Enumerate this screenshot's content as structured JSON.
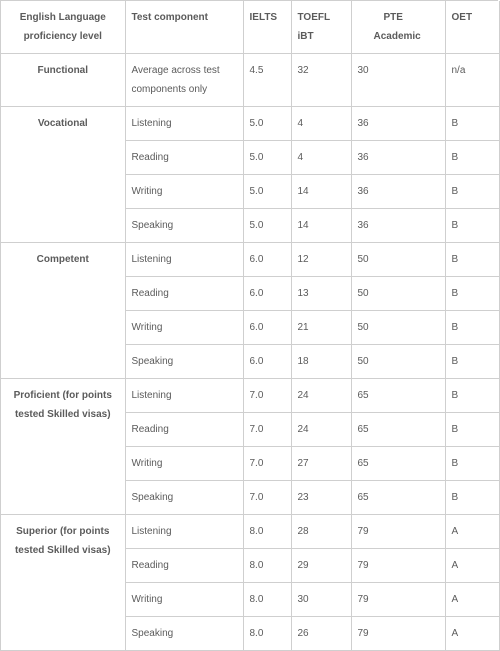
{
  "columns": {
    "level": {
      "line1": "English Language",
      "line2": "proficiency level"
    },
    "comp": "Test component",
    "ielts": "IELTS",
    "toefl": {
      "line1": "TOEFL",
      "line2": "iBT"
    },
    "pte": {
      "line1": "PTE",
      "line2": "Academic"
    },
    "oet": "OET"
  },
  "levels": [
    {
      "name": "Functional",
      "rows": [
        {
          "comp": "Average across test components only",
          "ielts": "4.5",
          "toefl": "32",
          "pte": "30",
          "oet": "n/a"
        }
      ]
    },
    {
      "name": "Vocational",
      "rows": [
        {
          "comp": "Listening",
          "ielts": "5.0",
          "toefl": "4",
          "pte": "36",
          "oet": "B"
        },
        {
          "comp": "Reading",
          "ielts": "5.0",
          "toefl": "4",
          "pte": "36",
          "oet": "B"
        },
        {
          "comp": "Writing",
          "ielts": "5.0",
          "toefl": "14",
          "pte": "36",
          "oet": "B"
        },
        {
          "comp": "Speaking",
          "ielts": "5.0",
          "toefl": "14",
          "pte": "36",
          "oet": "B"
        }
      ]
    },
    {
      "name": "Competent",
      "rows": [
        {
          "comp": "Listening",
          "ielts": "6.0",
          "toefl": "12",
          "pte": "50",
          "oet": "B"
        },
        {
          "comp": "Reading",
          "ielts": "6.0",
          "toefl": "13",
          "pte": "50",
          "oet": "B"
        },
        {
          "comp": "Writing",
          "ielts": "6.0",
          "toefl": "21",
          "pte": "50",
          "oet": "B"
        },
        {
          "comp": "Speaking",
          "ielts": "6.0",
          "toefl": "18",
          "pte": "50",
          "oet": "B"
        }
      ]
    },
    {
      "name": "Proficient (for points tested Skilled visas)",
      "rows": [
        {
          "comp": "Listening",
          "ielts": "7.0",
          "toefl": "24",
          "pte": "65",
          "oet": "B"
        },
        {
          "comp": "Reading",
          "ielts": "7.0",
          "toefl": "24",
          "pte": "65",
          "oet": "B"
        },
        {
          "comp": "Writing",
          "ielts": "7.0",
          "toefl": "27",
          "pte": "65",
          "oet": "B"
        },
        {
          "comp": "Speaking",
          "ielts": "7.0",
          "toefl": "23",
          "pte": "65",
          "oet": "B"
        }
      ]
    },
    {
      "name": "Superior (for points tested Skilled visas)",
      "rows": [
        {
          "comp": "Listening",
          "ielts": "8.0",
          "toefl": "28",
          "pte": "79",
          "oet": "A"
        },
        {
          "comp": "Reading",
          "ielts": "8.0",
          "toefl": "29",
          "pte": "79",
          "oet": "A"
        },
        {
          "comp": "Writing",
          "ielts": "8.0",
          "toefl": "30",
          "pte": "79",
          "oet": "A"
        },
        {
          "comp": "Speaking",
          "ielts": "8.0",
          "toefl": "26",
          "pte": "79",
          "oet": "A"
        }
      ]
    }
  ]
}
